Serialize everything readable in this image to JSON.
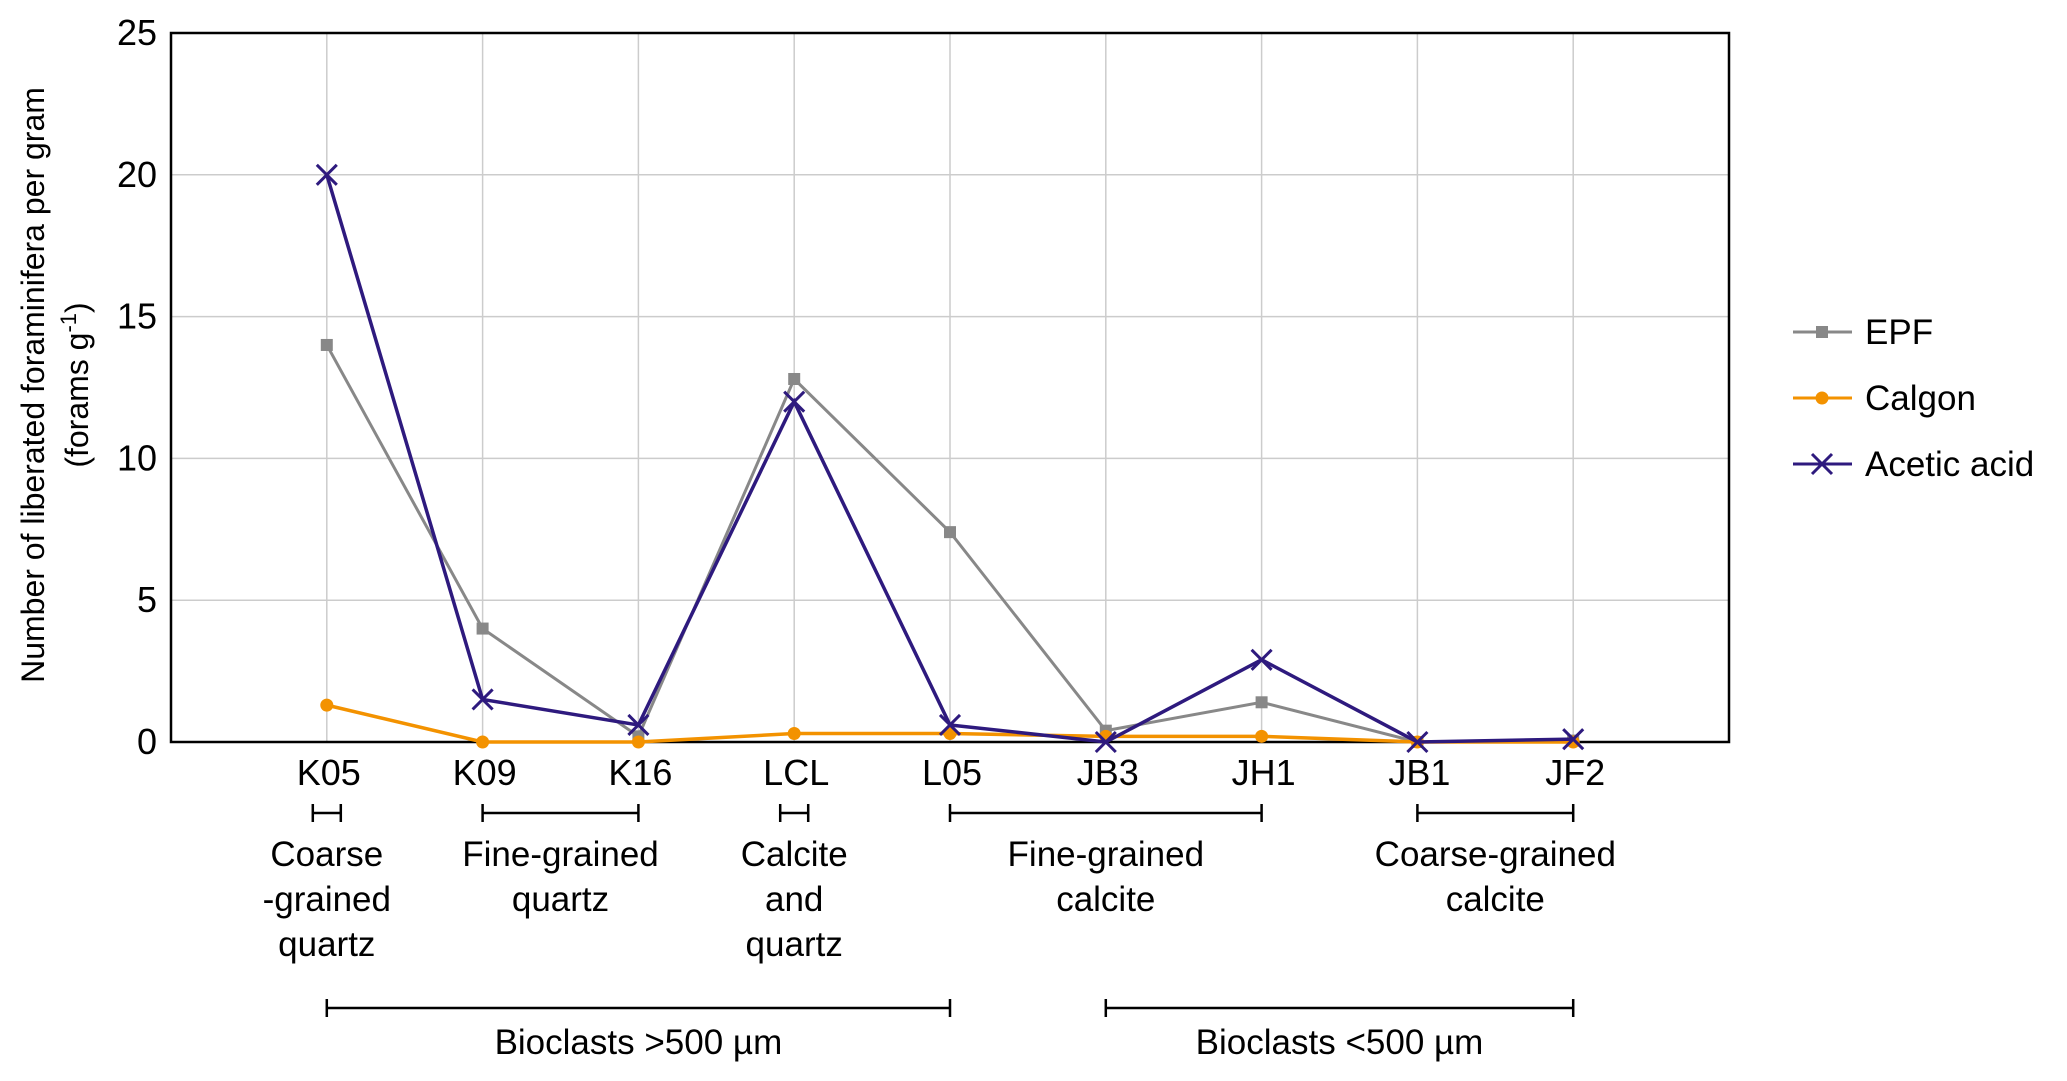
{
  "chart_data": {
    "type": "line",
    "title": "",
    "xlabel": "",
    "ylabel_line1": "Number of liberated foraminifera per gram",
    "ylabel_line2": "(forams g",
    "ylabel_sup": "-1",
    "ylabel_close": ")",
    "ylim": [
      0,
      25
    ],
    "yticks": [
      "0",
      "5",
      "10",
      "15",
      "20",
      "25"
    ],
    "grid": true,
    "legend_placement": "right",
    "categories": [
      "K05",
      "K09",
      "K16",
      "LCL",
      "L05",
      "JB3",
      "JH1",
      "JB1",
      "JF2"
    ],
    "series": [
      {
        "name": "EPF",
        "color": "#888888",
        "marker": "square",
        "values": [
          14,
          4,
          0.2,
          12.8,
          7.4,
          0.4,
          1.4,
          0,
          0.05
        ]
      },
      {
        "name": "Calgon",
        "color": "#f39200",
        "marker": "circle",
        "values": [
          1.3,
          0,
          0,
          0.3,
          0.3,
          0.2,
          0.2,
          0,
          0
        ]
      },
      {
        "name": "Acetic acid",
        "color": "#2e1a7e",
        "marker": "x",
        "values": [
          20,
          1.5,
          0.6,
          12,
          0.6,
          0,
          2.9,
          0,
          0.1
        ]
      }
    ],
    "groups": [
      {
        "from": 0,
        "to": 0,
        "lines": [
          "Coarse",
          "-grained",
          "quartz"
        ]
      },
      {
        "from": 1,
        "to": 2,
        "lines": [
          "Fine-grained",
          "quartz"
        ]
      },
      {
        "from": 3,
        "to": 3,
        "lines": [
          "Calcite",
          "and",
          "quartz"
        ]
      },
      {
        "from": 4,
        "to": 6,
        "lines": [
          "Fine-grained",
          "calcite"
        ]
      },
      {
        "from": 7,
        "to": 8,
        "lines": [
          "Coarse-grained",
          "calcite"
        ]
      }
    ],
    "supergroups": [
      {
        "from": 0,
        "to": 4,
        "label": "Bioclasts >500 µm"
      },
      {
        "from": 5,
        "to": 8,
        "label": "Bioclasts <500 µm"
      }
    ]
  }
}
